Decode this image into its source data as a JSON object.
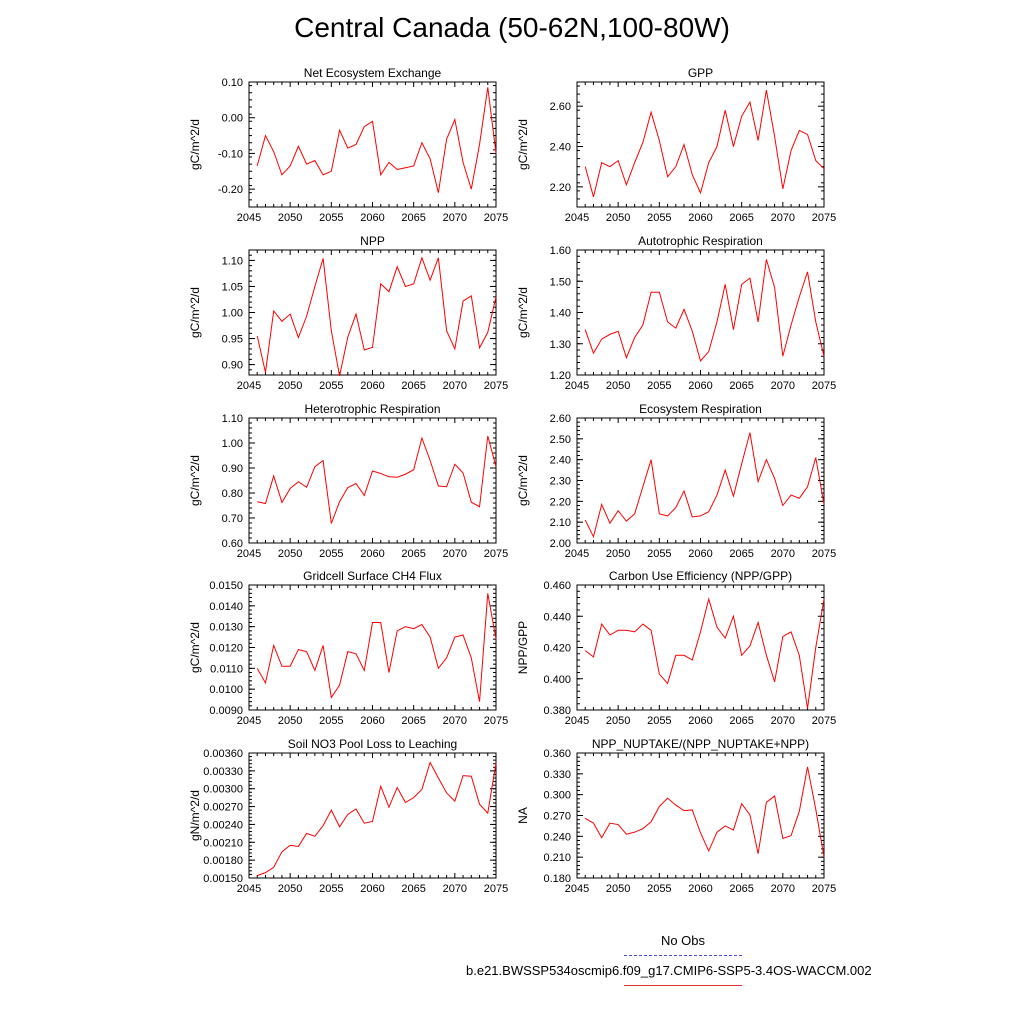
{
  "title": "Central Canada (50-62N,100-80W)",
  "colors": {
    "series": "#ff0000",
    "obs": "#4a4ad8",
    "axis": "#000000"
  },
  "legend": {
    "obs_label": "No Obs",
    "case_label": "b.e21.BWSSP534oscmip6.f09_g17.CMIP6-SSP5-3.4OS-WACCM.002"
  },
  "chart_data": [
    {
      "type": "line",
      "title": "Net Ecosystem Exchange",
      "ylabel": "gC/m^2/d",
      "xlabel": "",
      "xlim": [
        2045,
        2075
      ],
      "ylim": [
        -0.25,
        0.1
      ],
      "xticks": [
        "2045",
        "2050",
        "2055",
        "2060",
        "2065",
        "2070",
        "2075"
      ],
      "yticks": [
        "-0.20",
        "-0.10",
        "0.00",
        "0.10"
      ],
      "series": [
        {
          "name": "b.e21.BWSSP534oscmip6.f09_g17.CMIP6-SSP5-3.4OS-WACCM.002",
          "x": [
            2046,
            2047,
            2048,
            2049,
            2050,
            2051,
            2052,
            2053,
            2054,
            2055,
            2056,
            2057,
            2058,
            2059,
            2060,
            2061,
            2062,
            2063,
            2064,
            2065,
            2066,
            2067,
            2068,
            2069,
            2070,
            2071,
            2072,
            2073,
            2074,
            2075
          ],
          "values": [
            -0.135,
            -0.05,
            -0.095,
            -0.16,
            -0.135,
            -0.08,
            -0.13,
            -0.12,
            -0.16,
            -0.15,
            -0.035,
            -0.085,
            -0.075,
            -0.025,
            -0.01,
            -0.16,
            -0.125,
            -0.145,
            -0.14,
            -0.135,
            -0.07,
            -0.115,
            -0.21,
            -0.06,
            -0.005,
            -0.125,
            -0.2,
            -0.075,
            0.085,
            -0.1
          ]
        }
      ]
    },
    {
      "type": "line",
      "title": "GPP",
      "ylabel": "gC/m^2/d",
      "xlabel": "",
      "xlim": [
        2045,
        2075
      ],
      "ylim": [
        2.1,
        2.72
      ],
      "xticks": [
        "2045",
        "2050",
        "2055",
        "2060",
        "2065",
        "2070",
        "2075"
      ],
      "yticks": [
        "2.20",
        "2.40",
        "2.60"
      ],
      "series": [
        {
          "name": "b.e21.BWSSP534oscmip6.f09_g17.CMIP6-SSP5-3.4OS-WACCM.002",
          "x": [
            2046,
            2047,
            2048,
            2049,
            2050,
            2051,
            2052,
            2053,
            2054,
            2055,
            2056,
            2057,
            2058,
            2059,
            2060,
            2061,
            2062,
            2063,
            2064,
            2065,
            2066,
            2067,
            2068,
            2069,
            2070,
            2071,
            2072,
            2073,
            2074,
            2075
          ],
          "values": [
            2.3,
            2.15,
            2.32,
            2.3,
            2.33,
            2.21,
            2.32,
            2.42,
            2.57,
            2.43,
            2.25,
            2.3,
            2.41,
            2.26,
            2.17,
            2.32,
            2.4,
            2.58,
            2.4,
            2.55,
            2.62,
            2.43,
            2.68,
            2.45,
            2.19,
            2.38,
            2.48,
            2.46,
            2.33,
            2.29
          ]
        }
      ]
    },
    {
      "type": "line",
      "title": "NPP",
      "ylabel": "gC/m^2/d",
      "xlabel": "",
      "xlim": [
        2045,
        2075
      ],
      "ylim": [
        0.88,
        1.12
      ],
      "xticks": [
        "2045",
        "2050",
        "2055",
        "2060",
        "2065",
        "2070",
        "2075"
      ],
      "yticks": [
        "0.90",
        "0.95",
        "1.00",
        "1.05",
        "1.10"
      ],
      "series": [
        {
          "name": "b.e21.BWSSP534oscmip6.f09_g17.CMIP6-SSP5-3.4OS-WACCM.002",
          "x": [
            2046,
            2047,
            2048,
            2049,
            2050,
            2051,
            2052,
            2053,
            2054,
            2055,
            2056,
            2057,
            2058,
            2059,
            2060,
            2061,
            2062,
            2063,
            2064,
            2065,
            2066,
            2067,
            2068,
            2069,
            2070,
            2071,
            2072,
            2073,
            2074,
            2075
          ],
          "values": [
            0.955,
            0.885,
            1.003,
            0.983,
            0.997,
            0.952,
            0.993,
            1.05,
            1.104,
            0.965,
            0.878,
            0.953,
            0.997,
            0.928,
            0.933,
            1.055,
            1.04,
            1.088,
            1.05,
            1.055,
            1.105,
            1.062,
            1.105,
            0.965,
            0.93,
            1.022,
            1.032,
            0.932,
            0.962,
            1.03
          ]
        }
      ]
    },
    {
      "type": "line",
      "title": "Autotrophic Respiration",
      "ylabel": "gC/m^2/d",
      "xlabel": "",
      "xlim": [
        2045,
        2075
      ],
      "ylim": [
        1.2,
        1.6
      ],
      "xticks": [
        "2045",
        "2050",
        "2055",
        "2060",
        "2065",
        "2070",
        "2075"
      ],
      "yticks": [
        "1.20",
        "1.30",
        "1.40",
        "1.50",
        "1.60"
      ],
      "series": [
        {
          "name": "b.e21.BWSSP534oscmip6.f09_g17.CMIP6-SSP5-3.4OS-WACCM.002",
          "x": [
            2046,
            2047,
            2048,
            2049,
            2050,
            2051,
            2052,
            2053,
            2054,
            2055,
            2056,
            2057,
            2058,
            2059,
            2060,
            2061,
            2062,
            2063,
            2064,
            2065,
            2066,
            2067,
            2068,
            2069,
            2070,
            2071,
            2072,
            2073,
            2074,
            2075
          ],
          "values": [
            1.345,
            1.27,
            1.315,
            1.33,
            1.34,
            1.255,
            1.32,
            1.36,
            1.465,
            1.465,
            1.37,
            1.35,
            1.41,
            1.34,
            1.245,
            1.275,
            1.37,
            1.49,
            1.345,
            1.49,
            1.51,
            1.37,
            1.57,
            1.48,
            1.26,
            1.36,
            1.45,
            1.53,
            1.37,
            1.26
          ]
        }
      ]
    },
    {
      "type": "line",
      "title": "Heterotrophic Respiration",
      "ylabel": "gC/m^2/d",
      "xlabel": "",
      "xlim": [
        2045,
        2075
      ],
      "ylim": [
        0.6,
        1.1
      ],
      "xticks": [
        "2045",
        "2050",
        "2055",
        "2060",
        "2065",
        "2070",
        "2075"
      ],
      "yticks": [
        "0.60",
        "0.70",
        "0.80",
        "0.90",
        "1.00",
        "1.10"
      ],
      "series": [
        {
          "name": "b.e21.BWSSP534oscmip6.f09_g17.CMIP6-SSP5-3.4OS-WACCM.002",
          "x": [
            2046,
            2047,
            2048,
            2049,
            2050,
            2051,
            2052,
            2053,
            2054,
            2055,
            2056,
            2057,
            2058,
            2059,
            2060,
            2061,
            2062,
            2063,
            2064,
            2065,
            2066,
            2067,
            2068,
            2069,
            2070,
            2071,
            2072,
            2073,
            2074,
            2075
          ],
          "values": [
            0.765,
            0.758,
            0.868,
            0.762,
            0.818,
            0.845,
            0.823,
            0.905,
            0.93,
            0.678,
            0.765,
            0.822,
            0.838,
            0.79,
            0.888,
            0.878,
            0.865,
            0.863,
            0.875,
            0.893,
            1.02,
            0.93,
            0.828,
            0.825,
            0.915,
            0.88,
            0.763,
            0.745,
            1.028,
            0.905
          ]
        }
      ]
    },
    {
      "type": "line",
      "title": "Ecosystem Respiration",
      "ylabel": "gC/m^2/d",
      "xlabel": "",
      "xlim": [
        2045,
        2075
      ],
      "ylim": [
        2.0,
        2.6
      ],
      "xticks": [
        "2045",
        "2050",
        "2055",
        "2060",
        "2065",
        "2070",
        "2075"
      ],
      "yticks": [
        "2.00",
        "2.10",
        "2.20",
        "2.30",
        "2.40",
        "2.50",
        "2.60"
      ],
      "series": [
        {
          "name": "b.e21.BWSSP534oscmip6.f09_g17.CMIP6-SSP5-3.4OS-WACCM.002",
          "x": [
            2046,
            2047,
            2048,
            2049,
            2050,
            2051,
            2052,
            2053,
            2054,
            2055,
            2056,
            2057,
            2058,
            2059,
            2060,
            2061,
            2062,
            2063,
            2064,
            2065,
            2066,
            2067,
            2068,
            2069,
            2070,
            2071,
            2072,
            2073,
            2074,
            2075
          ],
          "values": [
            2.11,
            2.03,
            2.185,
            2.095,
            2.155,
            2.105,
            2.14,
            2.27,
            2.4,
            2.14,
            2.13,
            2.17,
            2.25,
            2.125,
            2.13,
            2.15,
            2.23,
            2.35,
            2.225,
            2.38,
            2.53,
            2.295,
            2.4,
            2.31,
            2.18,
            2.23,
            2.215,
            2.27,
            2.41,
            2.185
          ]
        }
      ]
    },
    {
      "type": "line",
      "title": "Gridcell Surface CH4 Flux",
      "ylabel": "gC/m^2/d",
      "xlabel": "",
      "xlim": [
        2045,
        2075
      ],
      "ylim": [
        0.009,
        0.015
      ],
      "xticks": [
        "2045",
        "2050",
        "2055",
        "2060",
        "2065",
        "2070",
        "2075"
      ],
      "yticks": [
        "0.0090",
        "0.0100",
        "0.0110",
        "0.0120",
        "0.0130",
        "0.0140",
        "0.0150"
      ],
      "series": [
        {
          "name": "b.e21.BWSSP534oscmip6.f09_g17.CMIP6-SSP5-3.4OS-WACCM.002",
          "x": [
            2046,
            2047,
            2048,
            2049,
            2050,
            2051,
            2052,
            2053,
            2054,
            2055,
            2056,
            2057,
            2058,
            2059,
            2060,
            2061,
            2062,
            2063,
            2064,
            2065,
            2066,
            2067,
            2068,
            2069,
            2070,
            2071,
            2072,
            2073,
            2074,
            2075
          ],
          "values": [
            0.011,
            0.0103,
            0.0121,
            0.0111,
            0.0111,
            0.0119,
            0.0118,
            0.0109,
            0.0121,
            0.0096,
            0.0102,
            0.0118,
            0.0117,
            0.0109,
            0.0132,
            0.0132,
            0.0108,
            0.0128,
            0.013,
            0.0129,
            0.0131,
            0.0125,
            0.011,
            0.0115,
            0.0125,
            0.0126,
            0.0115,
            0.0094,
            0.0146,
            0.0124
          ]
        }
      ]
    },
    {
      "type": "line",
      "title": "Carbon Use Efficiency (NPP/GPP)",
      "ylabel": "NPP/GPP",
      "xlabel": "",
      "xlim": [
        2045,
        2075
      ],
      "ylim": [
        0.38,
        0.46
      ],
      "xticks": [
        "2045",
        "2050",
        "2055",
        "2060",
        "2065",
        "2070",
        "2075"
      ],
      "yticks": [
        "0.380",
        "0.400",
        "0.420",
        "0.440",
        "0.460"
      ],
      "series": [
        {
          "name": "b.e21.BWSSP534oscmip6.f09_g17.CMIP6-SSP5-3.4OS-WACCM.002",
          "x": [
            2046,
            2047,
            2048,
            2049,
            2050,
            2051,
            2052,
            2053,
            2054,
            2055,
            2056,
            2057,
            2058,
            2059,
            2060,
            2061,
            2062,
            2063,
            2064,
            2065,
            2066,
            2067,
            2068,
            2069,
            2070,
            2071,
            2072,
            2073,
            2074,
            2075
          ],
          "values": [
            0.418,
            0.414,
            0.435,
            0.428,
            0.431,
            0.431,
            0.43,
            0.435,
            0.431,
            0.403,
            0.397,
            0.415,
            0.415,
            0.412,
            0.43,
            0.451,
            0.433,
            0.426,
            0.44,
            0.415,
            0.421,
            0.436,
            0.415,
            0.398,
            0.427,
            0.43,
            0.415,
            0.381,
            0.42,
            0.451
          ]
        }
      ]
    },
    {
      "type": "line",
      "title": "Soil NO3 Pool Loss to Leaching",
      "ylabel": "gN/m^2/d",
      "xlabel": "",
      "xlim": [
        2045,
        2075
      ],
      "ylim": [
        0.0015,
        0.0036
      ],
      "xticks": [
        "2045",
        "2050",
        "2055",
        "2060",
        "2065",
        "2070",
        "2075"
      ],
      "yticks": [
        "0.00150",
        "0.00180",
        "0.00210",
        "0.00240",
        "0.00270",
        "0.00300",
        "0.00330",
        "0.00360"
      ],
      "series": [
        {
          "name": "b.e21.BWSSP534oscmip6.f09_g17.CMIP6-SSP5-3.4OS-WACCM.002",
          "x": [
            2046,
            2047,
            2048,
            2049,
            2050,
            2051,
            2052,
            2053,
            2054,
            2055,
            2056,
            2057,
            2058,
            2059,
            2060,
            2061,
            2062,
            2063,
            2064,
            2065,
            2066,
            2067,
            2068,
            2069,
            2070,
            2071,
            2072,
            2073,
            2074,
            2075
          ],
          "values": [
            0.00154,
            0.00159,
            0.00168,
            0.00194,
            0.00205,
            0.00203,
            0.00225,
            0.0022,
            0.00238,
            0.00264,
            0.00236,
            0.00257,
            0.00266,
            0.00242,
            0.00245,
            0.00304,
            0.00269,
            0.00302,
            0.00277,
            0.00285,
            0.00299,
            0.00344,
            0.00318,
            0.00293,
            0.00279,
            0.00322,
            0.00321,
            0.00274,
            0.00259,
            0.00343
          ]
        }
      ]
    },
    {
      "type": "line",
      "title": "NPP_NUPTAKE/(NPP_NUPTAKE+NPP)",
      "ylabel": "NA",
      "xlabel": "",
      "xlim": [
        2045,
        2075
      ],
      "ylim": [
        0.18,
        0.36
      ],
      "xticks": [
        "2045",
        "2050",
        "2055",
        "2060",
        "2065",
        "2070",
        "2075"
      ],
      "yticks": [
        "0.180",
        "0.210",
        "0.240",
        "0.270",
        "0.300",
        "0.330",
        "0.360"
      ],
      "series": [
        {
          "name": "b.e21.BWSSP534oscmip6.f09_g17.CMIP6-SSP5-3.4OS-WACCM.002",
          "x": [
            2046,
            2047,
            2048,
            2049,
            2050,
            2051,
            2052,
            2053,
            2054,
            2055,
            2056,
            2057,
            2058,
            2059,
            2060,
            2061,
            2062,
            2063,
            2064,
            2065,
            2066,
            2067,
            2068,
            2069,
            2070,
            2071,
            2072,
            2073,
            2074,
            2075
          ],
          "values": [
            0.266,
            0.259,
            0.238,
            0.259,
            0.257,
            0.243,
            0.246,
            0.251,
            0.261,
            0.283,
            0.295,
            0.285,
            0.277,
            0.278,
            0.245,
            0.219,
            0.246,
            0.255,
            0.249,
            0.287,
            0.271,
            0.215,
            0.289,
            0.298,
            0.237,
            0.241,
            0.276,
            0.34,
            0.279,
            0.21
          ]
        }
      ]
    }
  ]
}
